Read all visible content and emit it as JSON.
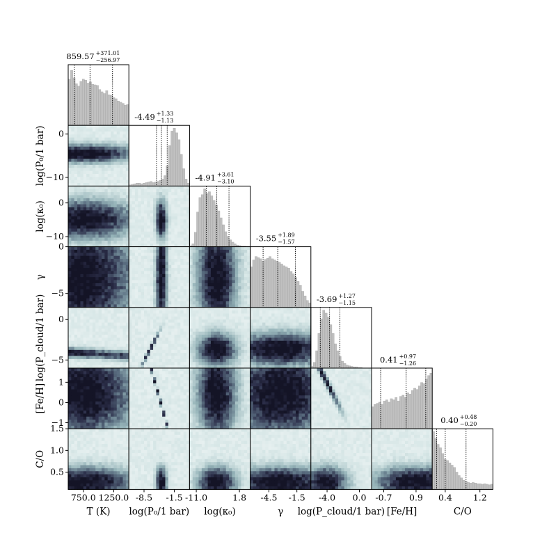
{
  "chart_data": {
    "type": "corner",
    "colors": {
      "histogram_fill": "#c0c0c0",
      "histogram_edge": "#9a9a9a",
      "density_light": "#e6f0f0",
      "density_mid": "#6f8f98",
      "density_dark": "#1c1f33",
      "quantile_line": "#000000"
    },
    "parameters": [
      {
        "id": "T",
        "label": "T (K)",
        "range": [
          500,
          1500
        ],
        "ticks": [
          {
            "v": 750,
            "t": "750.0"
          },
          {
            "v": 1250,
            "t": "1250.0"
          }
        ],
        "summary": {
          "median": "859.57",
          "plus": "+371.01",
          "minus": "−256.97"
        },
        "quantiles": [
          602.6,
          859.57,
          1230.58
        ],
        "hist": [
          0.8,
          0.95,
          0.82,
          0.72,
          0.68,
          0.76,
          0.8,
          0.78,
          0.73,
          0.75,
          0.71,
          0.7,
          0.69,
          0.62,
          0.58,
          0.55,
          0.6,
          0.53,
          0.52,
          0.48,
          0.46,
          0.42,
          0.4,
          0.38,
          0.35,
          0.36
        ]
      },
      {
        "id": "logP0",
        "label": "log(P₀/1 bar)",
        "range": [
          -12,
          2
        ],
        "ticks": [
          {
            "v": -8.5,
            "t": "-8.5"
          },
          {
            "v": -1.5,
            "t": "-1.5"
          }
        ],
        "ticks_y": [
          {
            "v": 0,
            "t": "0"
          },
          {
            "v": -10,
            "t": "−10"
          }
        ],
        "summary": {
          "median": "-4.49",
          "plus": "+1.33",
          "minus": "−1.13"
        },
        "quantiles": [
          -5.62,
          -4.49,
          -3.16
        ],
        "hist": [
          0.02,
          0.03,
          0.04,
          0.05,
          0.05,
          0.04,
          0.05,
          0.06,
          0.07,
          0.08,
          0.06,
          0.07,
          0.08,
          0.1,
          0.12,
          0.18,
          0.35,
          0.7,
          0.95,
          1.0,
          0.92,
          0.8,
          0.55,
          0.3,
          0.12,
          0.05
        ]
      },
      {
        "id": "logk0",
        "label": "log(κ₀)",
        "range": [
          -13,
          5
        ],
        "ticks": [
          {
            "v": -11,
            "t": "-11.0"
          },
          {
            "v": 1.8,
            "t": "1.8"
          }
        ],
        "ticks_y": [
          {
            "v": 0,
            "t": "0"
          },
          {
            "v": -10,
            "t": "−10"
          }
        ],
        "summary": {
          "median": "-4.91",
          "plus": "+3.61",
          "minus": "−3.10"
        },
        "quantiles": [
          -8.01,
          -4.91,
          -1.3
        ],
        "hist": [
          0.02,
          0.05,
          0.25,
          0.6,
          0.85,
          0.9,
          1.0,
          0.92,
          0.95,
          0.88,
          0.8,
          0.72,
          0.62,
          0.5,
          0.38,
          0.26,
          0.18,
          0.12,
          0.08,
          0.05,
          0.03,
          0.02,
          0.01,
          0.01,
          0.0,
          0.0
        ]
      },
      {
        "id": "gamma",
        "label": "γ",
        "range": [
          -6.5,
          0
        ],
        "ticks": [
          {
            "v": -4.5,
            "t": "-4.5"
          },
          {
            "v": -1.5,
            "t": "-1.5"
          }
        ],
        "ticks_y": [
          {
            "v": 0,
            "t": "0"
          },
          {
            "v": -5,
            "t": "−5"
          }
        ],
        "summary": {
          "median": "-3.55",
          "plus": "+1.89",
          "minus": "−1.57"
        },
        "quantiles": [
          -5.12,
          -3.55,
          -1.66
        ],
        "hist": [
          0.7,
          0.82,
          0.88,
          0.86,
          0.84,
          0.8,
          0.83,
          0.85,
          0.88,
          0.84,
          0.82,
          0.8,
          0.78,
          0.75,
          0.72,
          0.7,
          0.68,
          0.62,
          0.58,
          0.52,
          0.45,
          0.38,
          0.28,
          0.2,
          0.12,
          0.08
        ]
      },
      {
        "id": "logPcloud",
        "label": "log(P_cloud/1 bar)",
        "range": [
          -6,
          1.5
        ],
        "ticks": [
          {
            "v": -4.0,
            "t": "-4.0"
          },
          {
            "v": 0.0,
            "t": "0.0"
          }
        ],
        "ticks_y": [
          {
            "v": 0,
            "t": "0"
          },
          {
            "v": -5,
            "t": "−5"
          }
        ],
        "summary": {
          "median": "-3.69",
          "plus": "+1.27",
          "minus": "−1.15"
        },
        "quantiles": [
          -4.84,
          -3.69,
          -2.42
        ],
        "hist": [
          0.03,
          0.1,
          0.3,
          0.6,
          0.85,
          1.0,
          0.95,
          0.88,
          0.75,
          0.6,
          0.42,
          0.3,
          0.2,
          0.12,
          0.08,
          0.05,
          0.04,
          0.03,
          0.02,
          0.02,
          0.01,
          0.01,
          0.0,
          0.0,
          0.0,
          0.0
        ]
      },
      {
        "id": "FeH",
        "label": "[Fe/H]",
        "range": [
          -1.3,
          1.7
        ],
        "ticks": [
          {
            "v": -0.7,
            "t": "-0.7"
          },
          {
            "v": 0.9,
            "t": "0.9"
          }
        ],
        "ticks_y": [
          {
            "v": -1,
            "t": "−1"
          },
          {
            "v": 0,
            "t": "0"
          },
          {
            "v": 1,
            "t": "1"
          }
        ],
        "summary": {
          "median": "0.41",
          "plus": "+0.97",
          "minus": "−1.26"
        },
        "quantiles": [
          -0.85,
          0.41,
          1.38
        ],
        "hist": [
          0.38,
          0.42,
          0.44,
          0.46,
          0.42,
          0.48,
          0.5,
          0.46,
          0.52,
          0.5,
          0.54,
          0.48,
          0.56,
          0.58,
          0.54,
          0.62,
          0.6,
          0.66,
          0.7,
          0.68,
          0.74,
          0.8,
          0.78,
          0.86,
          0.92,
          0.96
        ]
      },
      {
        "id": "CO",
        "label": "C/O",
        "range": [
          0.1,
          1.5
        ],
        "ticks": [
          {
            "v": 0.4,
            "t": "0.4"
          },
          {
            "v": 1.2,
            "t": "1.2"
          }
        ],
        "ticks_y": [
          {
            "v": 0.5,
            "t": "0.5"
          },
          {
            "v": 1.0,
            "t": "1.0"
          },
          {
            "v": 1.5,
            "t": "1.5"
          }
        ],
        "summary": {
          "median": "0.40",
          "plus": "+0.48",
          "minus": "−0.20"
        },
        "quantiles": [
          0.2,
          0.4,
          0.88
        ],
        "hist": [
          1.0,
          0.88,
          0.78,
          0.72,
          0.62,
          0.52,
          0.5,
          0.46,
          0.42,
          0.38,
          0.3,
          0.24,
          0.2,
          0.16,
          0.14,
          0.12,
          0.11,
          0.12,
          0.11,
          0.1,
          0.1,
          0.09,
          0.1,
          0.09,
          0.08,
          0.09
        ]
      }
    ]
  }
}
